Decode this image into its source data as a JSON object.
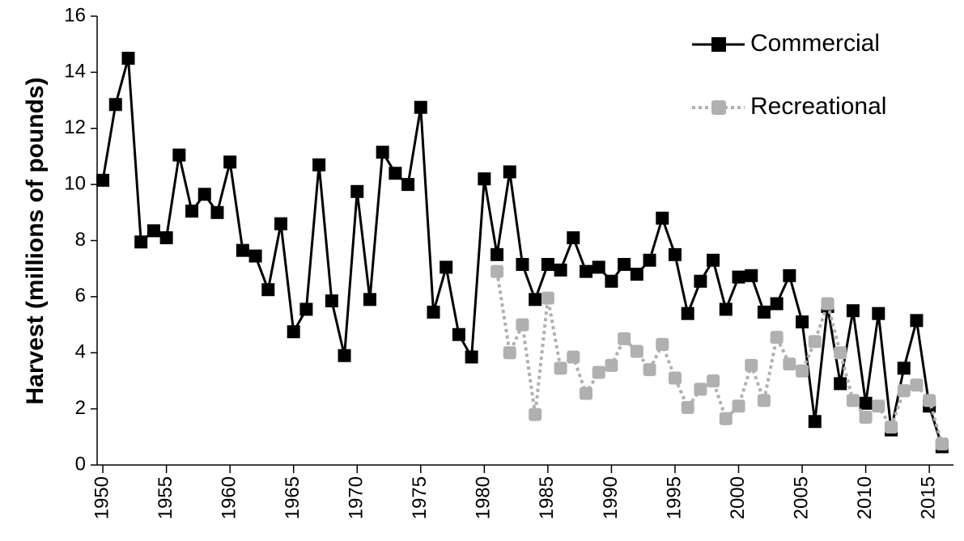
{
  "chart_data": {
    "type": "line",
    "y_label": "Harvest (millions of pounds)",
    "x": [
      1950,
      1951,
      1952,
      1953,
      1954,
      1955,
      1956,
      1957,
      1958,
      1959,
      1960,
      1961,
      1962,
      1963,
      1964,
      1965,
      1966,
      1967,
      1968,
      1969,
      1970,
      1971,
      1972,
      1973,
      1974,
      1975,
      1976,
      1977,
      1978,
      1979,
      1980,
      1981,
      1982,
      1983,
      1984,
      1985,
      1986,
      1987,
      1988,
      1989,
      1990,
      1991,
      1992,
      1993,
      1994,
      1995,
      1996,
      1997,
      1998,
      1999,
      2000,
      2001,
      2002,
      2003,
      2004,
      2005,
      2006,
      2007,
      2008,
      2009,
      2010,
      2011,
      2012,
      2013,
      2014,
      2015,
      2016
    ],
    "series": [
      {
        "name": "Commercial",
        "color": "#000000",
        "dashed": false,
        "values": [
          10.15,
          12.85,
          14.5,
          7.95,
          8.35,
          8.1,
          11.05,
          9.05,
          9.65,
          9.0,
          10.8,
          7.65,
          7.45,
          6.25,
          8.6,
          4.75,
          5.55,
          10.7,
          5.85,
          3.9,
          9.75,
          5.9,
          11.15,
          10.4,
          10.0,
          12.75,
          5.45,
          7.05,
          4.65,
          3.85,
          10.2,
          7.5,
          10.45,
          7.15,
          5.9,
          7.15,
          6.95,
          8.1,
          6.9,
          7.05,
          6.55,
          7.15,
          6.8,
          7.3,
          8.8,
          7.5,
          5.4,
          6.55,
          7.3,
          5.55,
          6.7,
          6.75,
          5.45,
          5.75,
          6.75,
          5.1,
          1.55,
          5.65,
          2.9,
          5.5,
          2.2,
          5.4,
          1.25,
          3.45,
          5.15,
          2.1,
          0.65
        ]
      },
      {
        "name": "Recreational",
        "color": "#b0b0b0",
        "dashed": true,
        "values": [
          null,
          null,
          null,
          null,
          null,
          null,
          null,
          null,
          null,
          null,
          null,
          null,
          null,
          null,
          null,
          null,
          null,
          null,
          null,
          null,
          null,
          null,
          null,
          null,
          null,
          null,
          null,
          null,
          null,
          null,
          null,
          6.9,
          4.0,
          5.0,
          1.8,
          5.95,
          3.45,
          3.85,
          2.55,
          3.3,
          3.55,
          4.5,
          4.05,
          3.4,
          4.3,
          3.1,
          2.05,
          2.7,
          3.0,
          1.65,
          2.1,
          3.55,
          2.3,
          4.55,
          3.6,
          3.35,
          4.4,
          5.75,
          4.0,
          2.3,
          1.7,
          2.1,
          1.35,
          2.65,
          2.85,
          2.3,
          0.75
        ]
      }
    ],
    "xlim": [
      1949.55,
      2016.9
    ],
    "xticks": [
      1950,
      1955,
      1960,
      1965,
      1970,
      1975,
      1980,
      1985,
      1990,
      1995,
      2000,
      2005,
      2010,
      2015
    ],
    "ylim": [
      0,
      16
    ],
    "yticks": [
      0,
      2,
      4,
      6,
      8,
      10,
      12,
      14,
      16
    ],
    "legend": "top-right"
  }
}
